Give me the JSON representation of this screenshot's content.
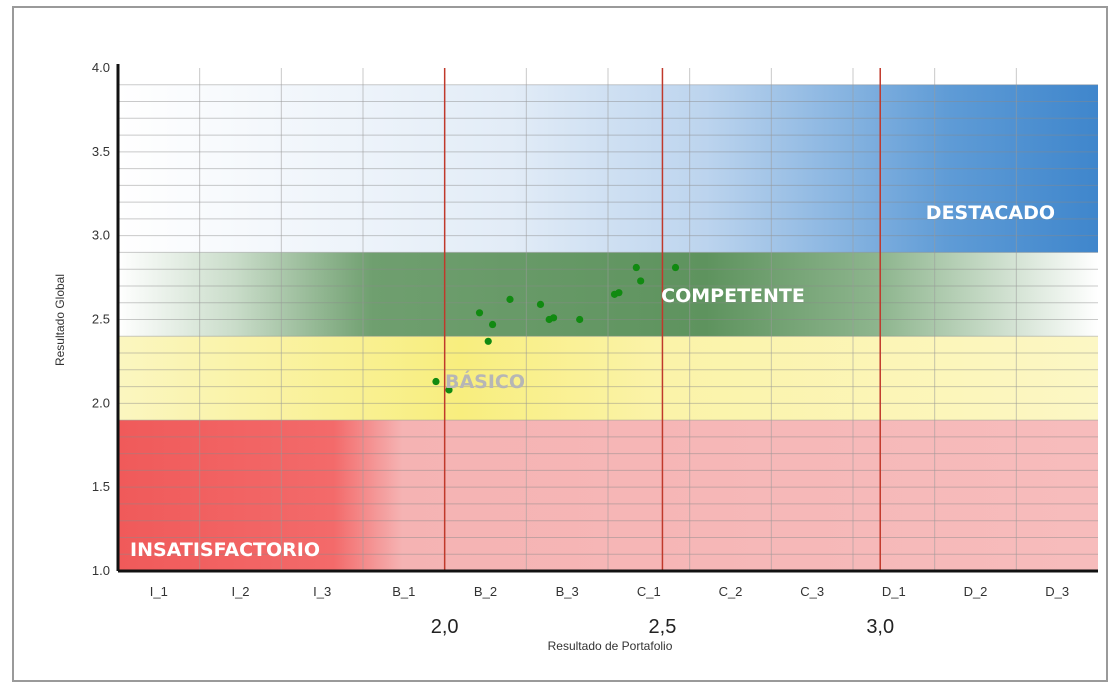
{
  "chart_data": {
    "type": "scatter",
    "xlabel": "Resultado de Portafolio",
    "ylabel": "Resultado Global",
    "xlim": [
      1.25,
      3.5
    ],
    "ylim": [
      1.0,
      4.0
    ],
    "x_band_ticks": [
      "I_1",
      "I_2",
      "I_3",
      "B_1",
      "B_2",
      "B_3",
      "C_1",
      "C_2",
      "C_3",
      "D_1",
      "D_2",
      "D_3"
    ],
    "x_major_ticks": [
      {
        "value": 2.0,
        "label": "2,0"
      },
      {
        "value": 2.5,
        "label": "2,5"
      },
      {
        "value": 3.0,
        "label": "3,0"
      }
    ],
    "y_ticks": [
      {
        "value": 1.0,
        "label": "1.0"
      },
      {
        "value": 1.5,
        "label": "1.5"
      },
      {
        "value": 2.0,
        "label": "2.0"
      },
      {
        "value": 2.5,
        "label": "2.5"
      },
      {
        "value": 3.0,
        "label": "3.0"
      },
      {
        "value": 3.5,
        "label": "3.5"
      },
      {
        "value": 4.0,
        "label": "4.0"
      }
    ],
    "zones": [
      {
        "label": "INSATISFACTORIO",
        "y_range": [
          1.0,
          1.9
        ],
        "color": "#f4a6a6",
        "label_color": "#ffffff"
      },
      {
        "label": "BÁSICO",
        "y_range": [
          1.9,
          2.4
        ],
        "color": "#faf4b0",
        "label_color": "#b6b6b6"
      },
      {
        "label": "COMPETENTE",
        "y_range": [
          2.4,
          2.9
        ],
        "color": "#6f9f6f",
        "label_color": "#ffffff"
      },
      {
        "label": "DESTACADO",
        "y_range": [
          2.9,
          3.9
        ],
        "color": "#4a8ecf",
        "label_color": "#ffffff"
      }
    ],
    "colors": {
      "points": "#118a11",
      "divider": "#c0392b",
      "axis": "#111111"
    },
    "grid": true,
    "points": [
      {
        "x": 1.98,
        "y": 2.13
      },
      {
        "x": 2.01,
        "y": 2.08
      },
      {
        "x": 2.08,
        "y": 2.54
      },
      {
        "x": 2.1,
        "y": 2.37
      },
      {
        "x": 2.11,
        "y": 2.47
      },
      {
        "x": 2.15,
        "y": 2.62
      },
      {
        "x": 2.22,
        "y": 2.59
      },
      {
        "x": 2.24,
        "y": 2.5
      },
      {
        "x": 2.25,
        "y": 2.51
      },
      {
        "x": 2.31,
        "y": 2.5
      },
      {
        "x": 2.39,
        "y": 2.65
      },
      {
        "x": 2.4,
        "y": 2.66
      },
      {
        "x": 2.44,
        "y": 2.81
      },
      {
        "x": 2.45,
        "y": 2.73
      },
      {
        "x": 2.53,
        "y": 2.81
      }
    ]
  }
}
